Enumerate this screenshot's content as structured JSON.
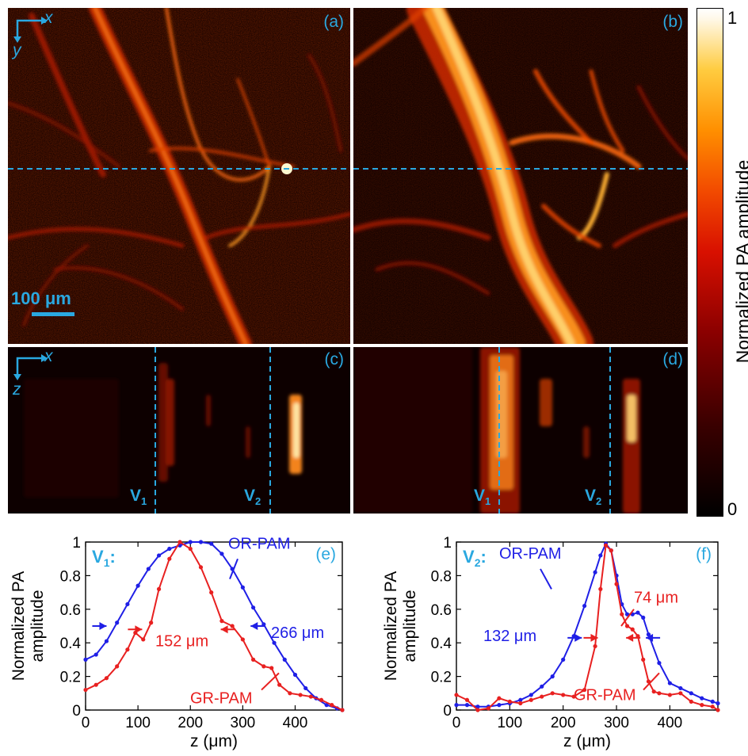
{
  "panels": {
    "a": {
      "label": "(a)",
      "axis_x": "x",
      "axis_y": "y",
      "scalebar": "100 μm"
    },
    "b": {
      "label": "(b)"
    },
    "c": {
      "label": "(c)",
      "axis_x": "x",
      "axis_y": "z",
      "v1": "V",
      "v1_sub": "1",
      "v2": "V",
      "v2_sub": "2"
    },
    "d": {
      "label": "(d)",
      "v1": "V",
      "v1_sub": "1",
      "v2": "V",
      "v2_sub": "2"
    }
  },
  "colorbar": {
    "title": "Normalized PA amplitude",
    "max": "1",
    "min": "0"
  },
  "colors": {
    "accent": "#2aa8e0",
    "or_pam": "#1f1fe6",
    "gr_pam": "#e82020"
  },
  "chart_data": [
    {
      "type": "line",
      "panel": "(e)",
      "inset_title": "V",
      "inset_sub": "1",
      "inset_colon": ":",
      "xlabel": "z (μm)",
      "ylabel_line1": "Normalized PA",
      "ylabel_line2": "amplitude",
      "xlim": [
        0,
        490
      ],
      "ylim": [
        0,
        1
      ],
      "xticks": [
        "0",
        "100",
        "200",
        "300",
        "400"
      ],
      "yticks": [
        "0",
        "0.2",
        "0.4",
        "0.6",
        "0.8",
        "1"
      ],
      "annotations": {
        "or_label": "OR-PAM",
        "gr_label": "GR-PAM",
        "or_width": "266 μm",
        "gr_width": "152 μm"
      },
      "series": [
        {
          "name": "OR-PAM",
          "color": "#1f1fe6",
          "x": [
            0,
            20,
            40,
            60,
            80,
            100,
            120,
            140,
            160,
            180,
            200,
            220,
            240,
            260,
            280,
            300,
            320,
            340,
            360,
            380,
            400,
            420,
            440,
            460,
            480,
            490
          ],
          "y": [
            0.3,
            0.33,
            0.41,
            0.52,
            0.63,
            0.74,
            0.84,
            0.92,
            0.96,
            0.98,
            1.0,
            1.0,
            0.99,
            0.93,
            0.84,
            0.73,
            0.61,
            0.51,
            0.4,
            0.3,
            0.21,
            0.13,
            0.07,
            0.03,
            0.01,
            0.0
          ]
        },
        {
          "name": "GR-PAM",
          "color": "#e82020",
          "x": [
            0,
            20,
            40,
            60,
            80,
            95,
            110,
            125,
            140,
            160,
            180,
            200,
            220,
            240,
            260,
            280,
            300,
            320,
            340,
            355,
            370,
            390,
            410,
            430,
            450,
            470,
            490
          ],
          "y": [
            0.12,
            0.15,
            0.19,
            0.26,
            0.36,
            0.46,
            0.42,
            0.52,
            0.72,
            0.9,
            1.0,
            0.96,
            0.85,
            0.7,
            0.53,
            0.5,
            0.42,
            0.3,
            0.26,
            0.25,
            0.15,
            0.1,
            0.09,
            0.08,
            0.06,
            0.03,
            0.0
          ]
        }
      ]
    },
    {
      "type": "line",
      "panel": "(f)",
      "inset_title": "V",
      "inset_sub": "2",
      "inset_colon": ":",
      "xlabel": "z (μm)",
      "ylabel_line1": "Normalized PA",
      "ylabel_line2": "amplitude",
      "xlim": [
        0,
        490
      ],
      "ylim": [
        0,
        1
      ],
      "xticks": [
        "0",
        "100",
        "200",
        "300",
        "400"
      ],
      "yticks": [
        "0",
        "0.2",
        "0.4",
        "0.6",
        "0.8",
        "1"
      ],
      "annotations": {
        "or_label": "OR-PAM",
        "gr_label": "GR-PAM",
        "or_width": "132 μm",
        "gr_width": "74 μm"
      },
      "series": [
        {
          "name": "OR-PAM",
          "color": "#1f1fe6",
          "x": [
            0,
            20,
            40,
            60,
            80,
            100,
            120,
            140,
            160,
            180,
            200,
            220,
            240,
            260,
            270,
            280,
            290,
            300,
            310,
            320,
            330,
            340,
            350,
            360,
            380,
            400,
            420,
            440,
            460,
            480,
            490
          ],
          "y": [
            0.03,
            0.03,
            0.02,
            0.02,
            0.03,
            0.04,
            0.06,
            0.09,
            0.14,
            0.2,
            0.3,
            0.44,
            0.62,
            0.82,
            0.92,
            0.99,
            0.95,
            0.8,
            0.63,
            0.57,
            0.57,
            0.58,
            0.55,
            0.45,
            0.28,
            0.16,
            0.13,
            0.1,
            0.07,
            0.05,
            0.04
          ]
        },
        {
          "name": "GR-PAM",
          "color": "#e82020",
          "x": [
            0,
            20,
            40,
            60,
            80,
            100,
            120,
            140,
            160,
            180,
            200,
            220,
            240,
            260,
            270,
            280,
            290,
            300,
            310,
            320,
            330,
            340,
            350,
            360,
            370,
            380,
            400,
            420,
            440,
            460,
            480,
            490
          ],
          "y": [
            0.09,
            0.06,
            0.0,
            0.01,
            0.07,
            0.05,
            0.04,
            0.06,
            0.08,
            0.1,
            0.09,
            0.08,
            0.12,
            0.38,
            0.72,
            0.98,
            0.95,
            0.75,
            0.57,
            0.5,
            0.48,
            0.44,
            0.3,
            0.17,
            0.11,
            0.1,
            0.09,
            0.1,
            0.05,
            0.03,
            0.02,
            0.0
          ]
        }
      ]
    }
  ]
}
